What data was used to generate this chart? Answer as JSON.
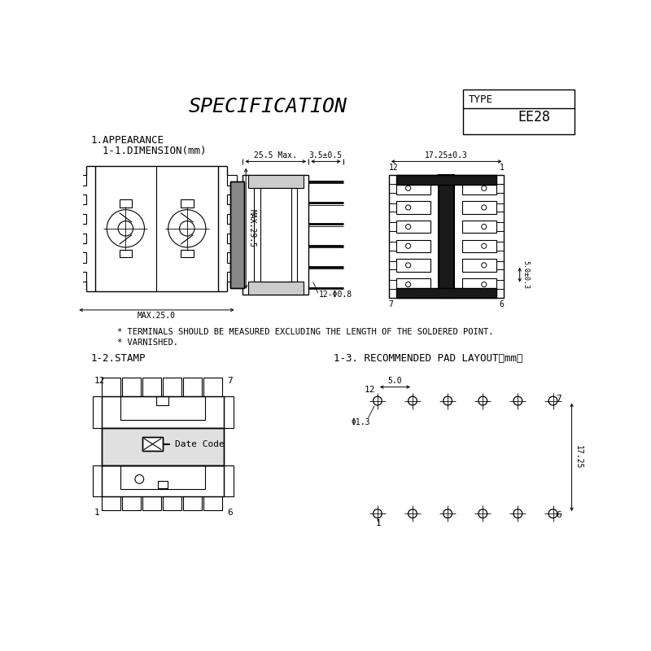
{
  "title": "SPECIFICATION",
  "type_label": "TYPE",
  "type_value": "EE28",
  "section1": "1.APPEARANCE",
  "section1_1": "  1-1.DIMENSION(mm)",
  "section1_2": "1-2.STAMP",
  "section1_3": "1-3. RECOMMENDED PAD LAYOUT（mm）",
  "notes": [
    "* TERMINALS SHOULD BE MEASURED EXCLUDING THE LENGTH OF THE SOLDERED POINT.",
    "* VARNISHED."
  ],
  "dim_max25": "MAX.25.0",
  "dim_max29": "MAX.29.5",
  "dim_255": "25.5 Max.",
  "dim_35": "3.5±0.5",
  "dim_1725": "17.25±0.3",
  "dim_phi": "12-Φ0.8",
  "dim_50": "5.0±0.3",
  "dim_50_pad": "5.0",
  "dim_phi13": "Φ1.3",
  "dim_1725_pad": "17.25",
  "bg_color": "#ffffff",
  "line_color": "#000000",
  "text_color": "#000000"
}
